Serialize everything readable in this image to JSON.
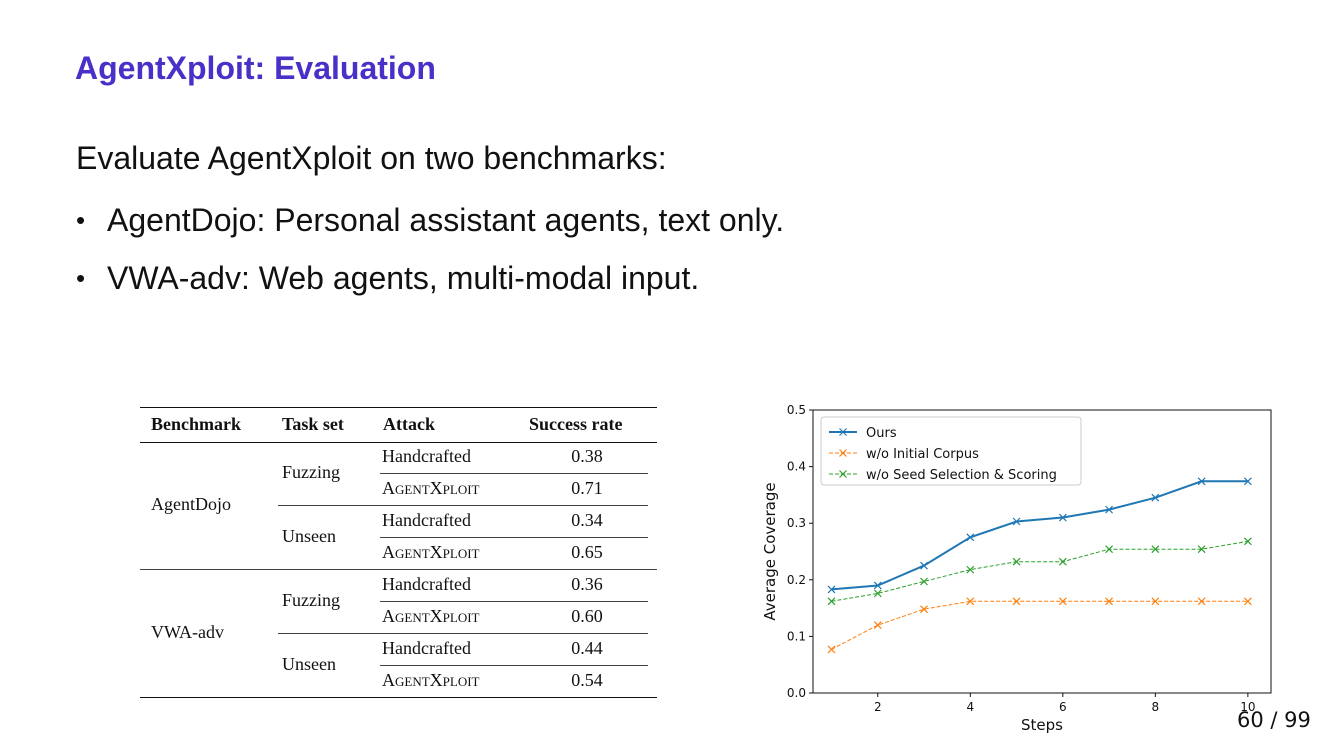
{
  "slide": {
    "title": "AgentXploit: Evaluation",
    "intro": "Evaluate AgentXploit on two benchmarks:",
    "bullets": [
      {
        "symbol": "•",
        "text": "AgentDojo: Personal assistant agents, text only."
      },
      {
        "symbol": "•",
        "text": "VWA-adv: Web agents, multi-modal input."
      }
    ],
    "page_number": "60 / 99",
    "title_color": "#4b2fc9"
  },
  "table": {
    "headers": [
      "Benchmark",
      "Task set",
      "Attack",
      "Success rate"
    ],
    "rows": [
      {
        "benchmark": "AgentDojo",
        "task_set": "Fuzzing",
        "attack": "Handcrafted",
        "rate": "0.38"
      },
      {
        "benchmark": "AgentDojo",
        "task_set": "Fuzzing",
        "attack": "AgentXploit",
        "rate": "0.71"
      },
      {
        "benchmark": "AgentDojo",
        "task_set": "Unseen",
        "attack": "Handcrafted",
        "rate": "0.34"
      },
      {
        "benchmark": "AgentDojo",
        "task_set": "Unseen",
        "attack": "AgentXploit",
        "rate": "0.65"
      },
      {
        "benchmark": "VWA-adv",
        "task_set": "Fuzzing",
        "attack": "Handcrafted",
        "rate": "0.36"
      },
      {
        "benchmark": "VWA-adv",
        "task_set": "Fuzzing",
        "attack": "AgentXploit",
        "rate": "0.60"
      },
      {
        "benchmark": "VWA-adv",
        "task_set": "Unseen",
        "attack": "Handcrafted",
        "rate": "0.44"
      },
      {
        "benchmark": "VWA-adv",
        "task_set": "Unseen",
        "attack": "AgentXploit",
        "rate": "0.54"
      }
    ]
  },
  "chart_data": {
    "type": "line",
    "title": "",
    "xlabel": "Steps",
    "ylabel": "Average Coverage",
    "xlim": [
      0.6,
      10.5
    ],
    "ylim": [
      0.0,
      0.5
    ],
    "xticks": [
      "2",
      "4",
      "6",
      "8",
      "10"
    ],
    "yticks": [
      "0.0",
      "0.1",
      "0.2",
      "0.3",
      "0.4",
      "0.5"
    ],
    "grid": false,
    "legend_position": "top-left",
    "x": [
      1,
      2,
      3,
      4,
      5,
      6,
      7,
      8,
      9,
      10
    ],
    "series": [
      {
        "name": "Ours",
        "color": "#1f77b4",
        "style": "solid",
        "marker": "x",
        "values": [
          0.183,
          0.19,
          0.225,
          0.275,
          0.303,
          0.31,
          0.324,
          0.345,
          0.374,
          0.374
        ]
      },
      {
        "name": "w/o Initial Corpus",
        "color": "#ff7f0e",
        "style": "dashed",
        "marker": "x",
        "values": [
          0.077,
          0.12,
          0.148,
          0.162,
          0.162,
          0.162,
          0.162,
          0.162,
          0.162,
          0.162
        ]
      },
      {
        "name": "w/o Seed Selection & Scoring",
        "color": "#2ca02c",
        "style": "dashed",
        "marker": "x",
        "values": [
          0.162,
          0.176,
          0.197,
          0.218,
          0.232,
          0.232,
          0.254,
          0.254,
          0.254,
          0.268
        ]
      }
    ]
  }
}
